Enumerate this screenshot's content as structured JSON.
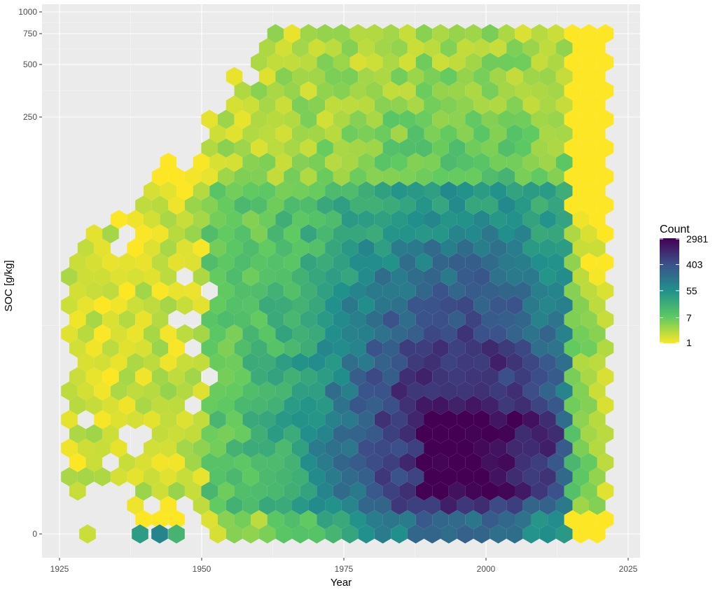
{
  "chart_data": {
    "type": "heatmap",
    "subtype": "hexbin",
    "title": "",
    "xlabel": "Year",
    "ylabel": "SOC [g/kg]",
    "x_ticks": [
      1925,
      1950,
      1975,
      2000,
      2025
    ],
    "y_ticks": [
      {
        "value": 0,
        "label": "0"
      },
      {
        "value": 250,
        "label": "250"
      },
      {
        "value": 500,
        "label": "500"
      },
      {
        "value": 750,
        "label": "750"
      },
      {
        "value": 1000,
        "label": "1000"
      }
    ],
    "xlim": [
      1923,
      2027
    ],
    "y_scale": "pseudo-log",
    "grid": true,
    "background": "#ebebeb",
    "legend": {
      "title": "Count",
      "placement": "right",
      "scale": "log",
      "breaks": [
        2981,
        403,
        55,
        7,
        1
      ],
      "break_labels": [
        "2981",
        "403",
        "55",
        "7",
        "1"
      ],
      "colormap": "viridis (reversed)",
      "palette": [
        "#fde725",
        "#5ec962",
        "#21918c",
        "#3b528b",
        "#440154"
      ]
    },
    "density_description": {
      "x_range_data": [
        1928,
        2022
      ],
      "densest_region": "years ~1990-2012 at low SOC values",
      "max_count": 2981
    }
  }
}
